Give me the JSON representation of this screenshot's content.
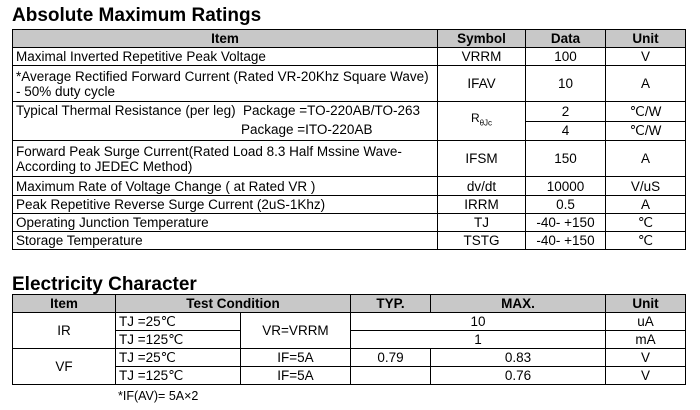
{
  "amr": {
    "title": "Absolute Maximum Ratings",
    "headers": {
      "item": "Item",
      "symbol": "Symbol",
      "data": "Data",
      "unit": "Unit"
    },
    "rows": [
      {
        "item": "Maximal Inverted Repetitive  Peak Voltage",
        "symbol": "VRRM",
        "data": "100",
        "unit": "V"
      },
      {
        "item": "*Average Rectified Forward Current (Rated VR-20Khz Square Wave) - 50% duty cycle",
        "symbol": "IFAV",
        "data": "10",
        "unit": "A"
      },
      {
        "item": "Typical Thermal Resistance (per leg)",
        "pkg1": "Package =TO-220AB/TO-263",
        "pkg2": "Package =ITO-220AB",
        "symbol_main": "R",
        "symbol_sub": "θJc",
        "data1": "2",
        "data2": "4",
        "unit1": "℃/W",
        "unit2": "℃/W"
      },
      {
        "item": "Forward Peak Surge Current(Rated Load 8.3 Half Mssine Wave-According to JEDEC Method)",
        "symbol": "IFSM",
        "data": "150",
        "unit": "A"
      },
      {
        "item": "Maximum Rate of Voltage Change ( at Rated VR )",
        "symbol": "dv/dt",
        "data": "10000",
        "unit": "V/uS"
      },
      {
        "item": "Peak Repetitive Reverse Surge Current (2uS-1Khz)",
        "symbol": "IRRM",
        "data": "0.5",
        "unit": "A"
      },
      {
        "item": "Operating Junction Temperature",
        "symbol": "TJ",
        "data": "-40- +150",
        "unit": "℃"
      },
      {
        "item": "Storage Temperature",
        "symbol": "TSTG",
        "data": "-40- +150",
        "unit": "℃"
      }
    ]
  },
  "elec": {
    "title": "Electricity Character",
    "headers": {
      "item": "Item",
      "test": "Test  Condition",
      "typ": "TYP.",
      "max": "MAX.",
      "unit": "Unit"
    },
    "ir": {
      "item": "IR",
      "cond": "VR=VRRM",
      "rows": [
        {
          "tj": "TJ =25℃",
          "max": "10",
          "unit": "uA"
        },
        {
          "tj": "TJ =125℃",
          "max": "1",
          "unit": "mA"
        }
      ]
    },
    "vf": {
      "item": "VF",
      "rows": [
        {
          "tj": "TJ =25℃",
          "if": "IF=5A",
          "typ": "0.79",
          "max": "0.83",
          "unit": "V"
        },
        {
          "tj": "TJ =125℃",
          "if": "IF=5A",
          "typ": "",
          "max": "0.76",
          "unit": "V"
        }
      ]
    },
    "footnote": "*IF(AV)= 5A×2"
  }
}
